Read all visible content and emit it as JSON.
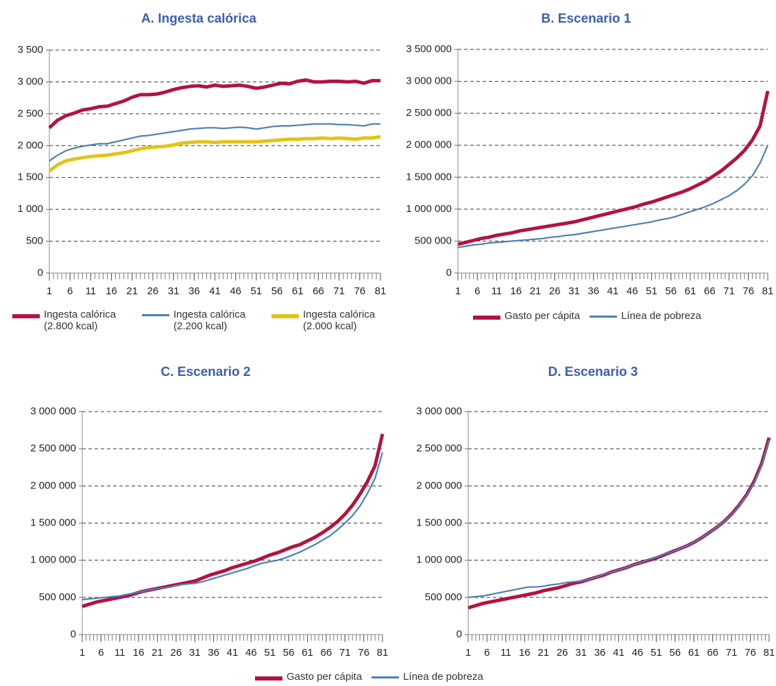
{
  "chart_data": [
    {
      "type": "line",
      "title": "A. Ingesta calórica",
      "x": [
        1,
        3,
        5,
        7,
        9,
        11,
        13,
        15,
        17,
        19,
        21,
        23,
        25,
        27,
        29,
        31,
        33,
        35,
        37,
        39,
        41,
        43,
        45,
        47,
        49,
        51,
        53,
        55,
        57,
        59,
        61,
        63,
        65,
        67,
        69,
        71,
        73,
        75,
        77,
        79,
        81
      ],
      "xlim": [
        1,
        81
      ],
      "xticks": [
        1,
        6,
        11,
        16,
        21,
        26,
        31,
        36,
        41,
        46,
        51,
        56,
        61,
        66,
        71,
        76,
        81
      ],
      "ylim": [
        0,
        3500
      ],
      "yticks": [
        0,
        500,
        {
          "value": 1000,
          "label": "1 000"
        },
        {
          "value": 1500,
          "label": "1 500"
        },
        {
          "value": 2000,
          "label": "2 000"
        },
        {
          "value": 2500,
          "label": "2 500"
        },
        {
          "value": 3000,
          "label": "3 000"
        },
        {
          "value": 3500,
          "label": "3 500"
        }
      ],
      "grid": true,
      "legend": "bottom",
      "series": [
        {
          "name": "Ingesta calórica (2.800 kcal)",
          "color": "#b5123f",
          "values": [
            2280,
            2400,
            2470,
            2510,
            2560,
            2580,
            2610,
            2620,
            2660,
            2700,
            2760,
            2800,
            2800,
            2810,
            2840,
            2880,
            2910,
            2930,
            2940,
            2920,
            2950,
            2930,
            2940,
            2950,
            2930,
            2900,
            2920,
            2950,
            2980,
            2970,
            3010,
            3030,
            3000,
            3000,
            3010,
            3010,
            3000,
            3010,
            2980,
            3020,
            3020
          ]
        },
        {
          "name": "Ingesta calórica (2.200 kcal)",
          "color": "#4a7ebb",
          "values": [
            1760,
            1850,
            1920,
            1960,
            1990,
            2010,
            2030,
            2030,
            2060,
            2090,
            2120,
            2150,
            2160,
            2180,
            2200,
            2220,
            2240,
            2260,
            2270,
            2280,
            2280,
            2270,
            2280,
            2290,
            2280,
            2260,
            2280,
            2300,
            2310,
            2310,
            2320,
            2330,
            2340,
            2340,
            2340,
            2330,
            2330,
            2320,
            2310,
            2340,
            2340
          ]
        },
        {
          "name": "Ingesta calórica (2.000 kcal)",
          "color": "#e3c414",
          "values": [
            1600,
            1700,
            1760,
            1790,
            1810,
            1830,
            1840,
            1850,
            1870,
            1890,
            1920,
            1950,
            1970,
            1980,
            1990,
            2010,
            2040,
            2050,
            2060,
            2060,
            2050,
            2060,
            2060,
            2060,
            2060,
            2060,
            2070,
            2080,
            2090,
            2100,
            2100,
            2110,
            2110,
            2120,
            2110,
            2120,
            2110,
            2100,
            2120,
            2120,
            2140
          ]
        }
      ]
    },
    {
      "type": "line",
      "title": "B. Escenario 1",
      "x": [
        1,
        3,
        5,
        7,
        9,
        11,
        13,
        15,
        17,
        19,
        21,
        23,
        25,
        27,
        29,
        31,
        33,
        35,
        37,
        39,
        41,
        43,
        45,
        47,
        49,
        51,
        53,
        55,
        57,
        59,
        61,
        63,
        65,
        67,
        69,
        71,
        73,
        75,
        77,
        79,
        81
      ],
      "xlim": [
        1,
        81
      ],
      "xticks": [
        1,
        6,
        11,
        16,
        21,
        26,
        31,
        36,
        41,
        46,
        51,
        56,
        61,
        66,
        71,
        76,
        81
      ],
      "ylim": [
        0,
        3500000
      ],
      "yticks": [
        0,
        {
          "value": 500000,
          "label": "500 000"
        },
        {
          "value": 1000000,
          "label": "1 000 000"
        },
        {
          "value": 1500000,
          "label": "1 500 000"
        },
        {
          "value": 2000000,
          "label": "2 000 000"
        },
        {
          "value": 2500000,
          "label": "2 500 000"
        },
        {
          "value": 3000000,
          "label": "3 000 000"
        },
        {
          "value": 3500000,
          "label": "3 500 000"
        }
      ],
      "grid": true,
      "legend": "bottom",
      "series": [
        {
          "name": "Gasto per cápita",
          "color": "#b5123f",
          "values": [
            450000,
            480000,
            510000,
            540000,
            560000,
            590000,
            610000,
            630000,
            660000,
            680000,
            700000,
            720000,
            740000,
            760000,
            780000,
            800000,
            830000,
            860000,
            890000,
            920000,
            950000,
            980000,
            1010000,
            1040000,
            1080000,
            1110000,
            1150000,
            1190000,
            1230000,
            1270000,
            1320000,
            1380000,
            1440000,
            1520000,
            1600000,
            1700000,
            1800000,
            1920000,
            2080000,
            2300000,
            2850000
          ]
        },
        {
          "name": "Línea de pobreza",
          "color": "#4a7ebb",
          "values": [
            400000,
            420000,
            440000,
            450000,
            470000,
            480000,
            490000,
            500000,
            510000,
            520000,
            530000,
            540000,
            560000,
            570000,
            590000,
            600000,
            620000,
            640000,
            660000,
            680000,
            700000,
            720000,
            740000,
            760000,
            780000,
            800000,
            830000,
            850000,
            880000,
            920000,
            960000,
            1000000,
            1040000,
            1090000,
            1150000,
            1210000,
            1290000,
            1390000,
            1520000,
            1720000,
            2000000
          ]
        }
      ]
    },
    {
      "type": "line",
      "title": "C. Escenario 2",
      "x": [
        1,
        3,
        5,
        7,
        9,
        11,
        13,
        15,
        17,
        19,
        21,
        23,
        25,
        27,
        29,
        31,
        33,
        35,
        37,
        39,
        41,
        43,
        45,
        47,
        49,
        51,
        53,
        55,
        57,
        59,
        61,
        63,
        65,
        67,
        69,
        71,
        73,
        75,
        77,
        79,
        81
      ],
      "xlim": [
        1,
        81
      ],
      "xticks": [
        1,
        6,
        11,
        16,
        21,
        26,
        31,
        36,
        41,
        46,
        51,
        56,
        61,
        66,
        71,
        76,
        81
      ],
      "ylim": [
        0,
        3000000
      ],
      "yticks": [
        0,
        {
          "value": 500000,
          "label": "500 000"
        },
        {
          "value": 1000000,
          "label": "1 000 000"
        },
        {
          "value": 1500000,
          "label": "1 500 000"
        },
        {
          "value": 2000000,
          "label": "2 000 000"
        },
        {
          "value": 2500000,
          "label": "2 500 000"
        },
        {
          "value": 3000000,
          "label": "3 000 000"
        }
      ],
      "grid": true,
      "legend": "bottom",
      "series": [
        {
          "name": "Gasto per cápita",
          "color": "#b5123f",
          "values": [
            380000,
            410000,
            440000,
            460000,
            480000,
            500000,
            520000,
            550000,
            580000,
            600000,
            620000,
            640000,
            660000,
            680000,
            700000,
            720000,
            760000,
            800000,
            830000,
            860000,
            900000,
            930000,
            960000,
            990000,
            1030000,
            1070000,
            1100000,
            1140000,
            1180000,
            1210000,
            1260000,
            1310000,
            1370000,
            1440000,
            1520000,
            1620000,
            1740000,
            1890000,
            2060000,
            2270000,
            2700000
          ]
        },
        {
          "name": "Línea de pobreza",
          "color": "#4a7ebb",
          "values": [
            470000,
            480000,
            490000,
            500000,
            510000,
            520000,
            540000,
            560000,
            580000,
            600000,
            620000,
            630000,
            650000,
            670000,
            680000,
            690000,
            710000,
            740000,
            770000,
            800000,
            830000,
            860000,
            890000,
            930000,
            960000,
            980000,
            1000000,
            1030000,
            1070000,
            1110000,
            1160000,
            1210000,
            1270000,
            1330000,
            1410000,
            1500000,
            1600000,
            1730000,
            1900000,
            2100000,
            2450000
          ]
        }
      ]
    },
    {
      "type": "line",
      "title": "D. Escenario 3",
      "x": [
        1,
        3,
        5,
        7,
        9,
        11,
        13,
        15,
        17,
        19,
        21,
        23,
        25,
        27,
        29,
        31,
        33,
        35,
        37,
        39,
        41,
        43,
        45,
        47,
        49,
        51,
        53,
        55,
        57,
        59,
        61,
        63,
        65,
        67,
        69,
        71,
        73,
        75,
        77,
        79,
        81
      ],
      "xlim": [
        1,
        81
      ],
      "xticks": [
        1,
        6,
        11,
        16,
        21,
        26,
        31,
        36,
        41,
        46,
        51,
        56,
        61,
        66,
        71,
        76,
        81
      ],
      "ylim": [
        0,
        3000000
      ],
      "yticks": [
        0,
        {
          "value": 500000,
          "label": "500 000"
        },
        {
          "value": 1000000,
          "label": "1 000 000"
        },
        {
          "value": 1500000,
          "label": "1 500 000"
        },
        {
          "value": 2000000,
          "label": "2 000 000"
        },
        {
          "value": 2500000,
          "label": "2 500 000"
        },
        {
          "value": 3000000,
          "label": "3 000 000"
        }
      ],
      "grid": true,
      "legend": "none",
      "series": [
        {
          "name": "Gasto per cápita",
          "color": "#b5123f",
          "values": [
            360000,
            390000,
            420000,
            440000,
            460000,
            480000,
            500000,
            520000,
            540000,
            560000,
            590000,
            610000,
            630000,
            660000,
            690000,
            710000,
            740000,
            770000,
            800000,
            840000,
            870000,
            900000,
            940000,
            970000,
            1000000,
            1030000,
            1070000,
            1110000,
            1150000,
            1190000,
            1240000,
            1300000,
            1370000,
            1440000,
            1520000,
            1620000,
            1740000,
            1880000,
            2060000,
            2300000,
            2650000
          ]
        },
        {
          "name": "Línea de pobreza",
          "color": "#4a7ebb",
          "values": [
            500000,
            510000,
            520000,
            540000,
            560000,
            580000,
            600000,
            620000,
            640000,
            640000,
            650000,
            670000,
            680000,
            700000,
            710000,
            720000,
            740000,
            770000,
            810000,
            840000,
            870000,
            900000,
            940000,
            970000,
            1010000,
            1040000,
            1080000,
            1110000,
            1150000,
            1190000,
            1240000,
            1300000,
            1370000,
            1440000,
            1520000,
            1610000,
            1730000,
            1870000,
            2040000,
            2280000,
            2620000
          ]
        }
      ]
    }
  ]
}
